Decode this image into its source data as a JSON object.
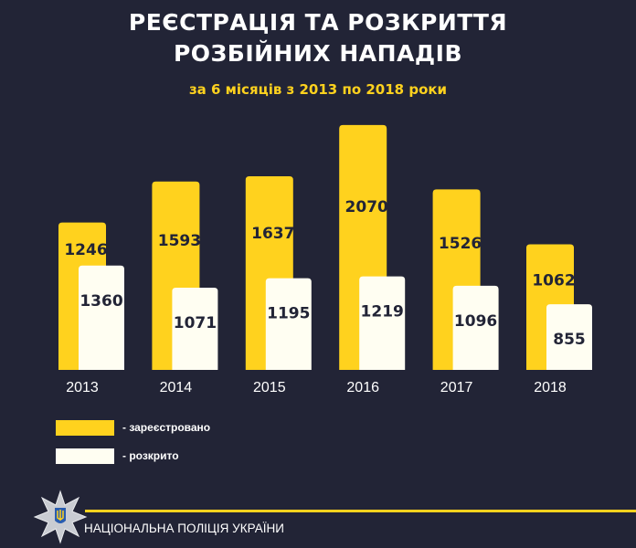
{
  "header": {
    "title_line1": "РЕЄСТРАЦІЯ ТА РОЗКРИТТЯ",
    "title_line2": "РОЗБІЙНИХ НАПАДІВ",
    "subtitle": "за 6 місяців з 2013 по 2018 роки"
  },
  "chart_data": {
    "type": "bar",
    "title": "РЕЄСТРАЦІЯ ТА РОЗКРИТТЯ РОЗБІЙНИХ НАПАДІВ",
    "subtitle": "за 6 місяців з 2013 по 2018 роки",
    "categories": [
      "2013",
      "2014",
      "2015",
      "2016",
      "2017",
      "2018"
    ],
    "series": [
      {
        "name": "зареєстровано",
        "color": "#FFD21E",
        "values": [
          1246,
          1593,
          1637,
          2070,
          1526,
          1062
        ]
      },
      {
        "name": "розкрито",
        "color": "#FFFEF2",
        "values": [
          1360,
          1071,
          1195,
          1219,
          1096,
          855
        ]
      }
    ],
    "grid": false,
    "legend_position": "bottom-left",
    "data_labels": true
  },
  "legend": {
    "registered": "- зареєстровано",
    "solved": "- розкрито"
  },
  "footer": {
    "org": "НАЦІОНАЛЬНА ПОЛІЦІЯ УКРАЇНИ",
    "logo": "police-star-emblem"
  },
  "colors": {
    "background": "#222436",
    "accent": "#FFD21E",
    "label_text": "#222436"
  }
}
